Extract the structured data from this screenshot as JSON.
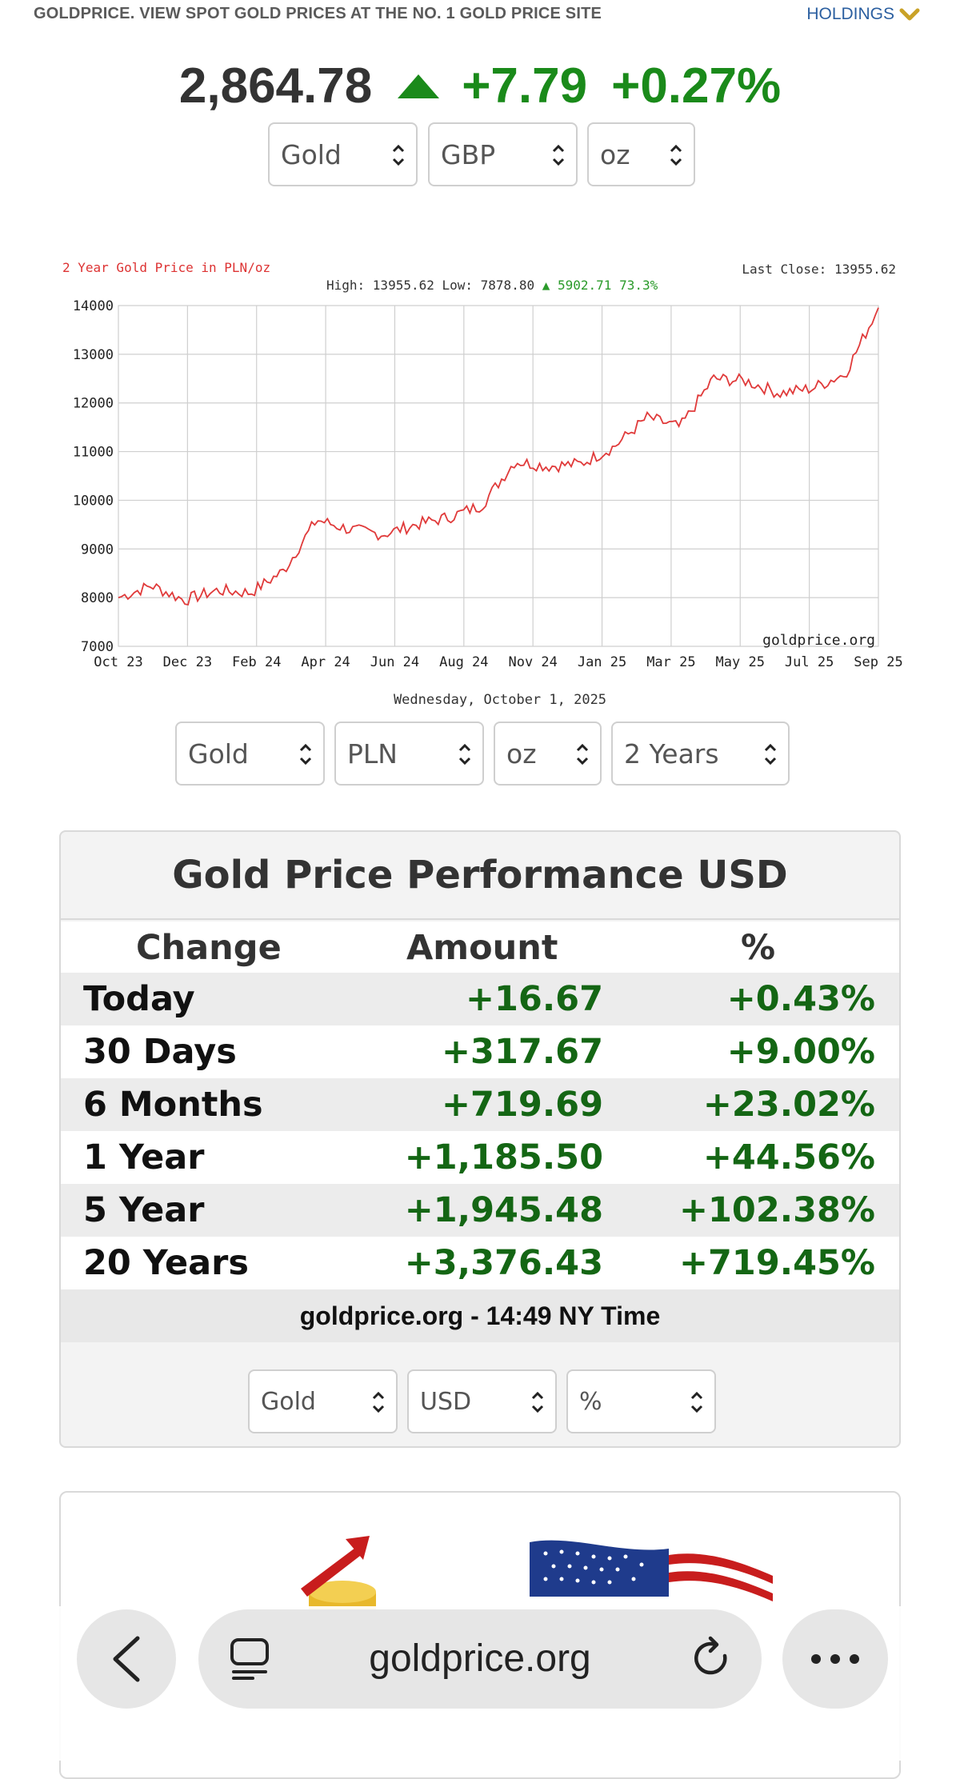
{
  "header": {
    "site_title": "GOLDPRICE. VIEW SPOT GOLD PRICES AT THE NO. 1 GOLD PRICE SITE",
    "holdings_label": "HOLDINGS"
  },
  "ticker": {
    "price": "2,864.78",
    "change": "+7.79",
    "change_pct": "+0.27%",
    "direction": "up",
    "color_up": "#1a8a1a"
  },
  "top_selectors": {
    "metal": "Gold",
    "currency": "GBP",
    "unit": "oz"
  },
  "chart_selectors": {
    "metal": "Gold",
    "currency": "PLN",
    "unit": "oz",
    "period": "2 Years"
  },
  "chart": {
    "title": "2 Year Gold Price in PLN/oz",
    "stats_prefix": "High: 13955.62 Low: 7878.80",
    "stats_change": "5902.71 73.3%",
    "last_close": "Last Close: 13955.62",
    "watermark": "goldprice.org",
    "date": "Wednesday, October 1, 2025",
    "line_color": "#e03a3a"
  },
  "chart_data": {
    "type": "line",
    "title": "2 Year Gold Price in PLN/oz",
    "xlabel": "",
    "ylabel": "",
    "ylim": [
      7000,
      14000
    ],
    "yticks": [
      7000,
      8000,
      9000,
      10000,
      11000,
      12000,
      13000,
      14000
    ],
    "xticks": [
      "Oct 23",
      "Dec 23",
      "Feb 24",
      "Apr 24",
      "Jun 24",
      "Aug 24",
      "Nov 24",
      "Jan 25",
      "Mar 25",
      "May 25",
      "Jul 25",
      "Sep 25"
    ],
    "grid": true,
    "series": [
      {
        "x": [
          "Oct 23",
          "Nov 23",
          "Dec 23",
          "Jan 24",
          "Feb 24",
          "Mar 24",
          "Apr 24",
          "May 24",
          "Jun 24",
          "Jul 24",
          "Aug 24",
          "Sep 24",
          "Oct 24",
          "Nov 24",
          "Dec 24",
          "Jan 25",
          "Feb 25",
          "Mar 25",
          "Apr 25",
          "May 25",
          "Jun 25",
          "Jul 25",
          "Aug 25",
          "Sep 25"
        ],
        "values": [
          8000,
          8250,
          7950,
          8150,
          8100,
          8550,
          9600,
          9400,
          9300,
          9500,
          9650,
          9900,
          10800,
          10700,
          10750,
          11100,
          11700,
          11500,
          12500,
          12450,
          12200,
          12300,
          12600,
          13955
        ]
      }
    ]
  },
  "performance": {
    "title": "Gold Price Performance USD",
    "headers": {
      "change": "Change",
      "amount": "Amount",
      "pct": "%"
    },
    "rows": [
      {
        "label": "Today",
        "amount": "+16.67",
        "pct": "+0.43%"
      },
      {
        "label": "30 Days",
        "amount": "+317.67",
        "pct": "+9.00%"
      },
      {
        "label": "6 Months",
        "amount": "+719.69",
        "pct": "+23.02%"
      },
      {
        "label": "1 Year",
        "amount": "+1,185.50",
        "pct": "+44.56%"
      },
      {
        "label": "5 Year",
        "amount": "+1,945.48",
        "pct": "+102.38%"
      },
      {
        "label": "20 Years",
        "amount": "+3,376.43",
        "pct": "+719.45%"
      }
    ],
    "footer": "goldprice.org - 14:49 NY Time",
    "selectors": {
      "metal": "Gold",
      "currency": "USD",
      "unit": "%"
    }
  },
  "browser": {
    "url": "goldprice.org"
  }
}
